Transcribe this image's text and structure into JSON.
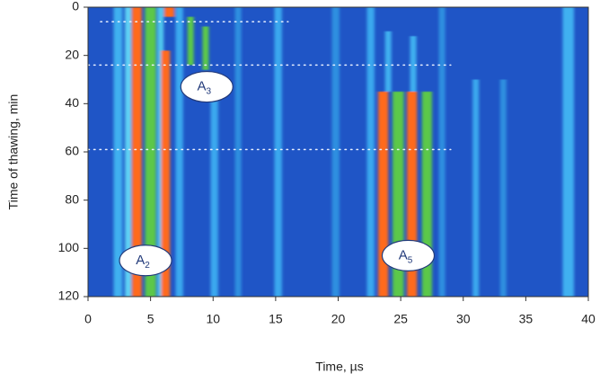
{
  "chart_data": {
    "type": "heatmap",
    "xlabel": "Time, µs",
    "ylabel": "Time of thawing, min",
    "xlim": [
      0,
      40
    ],
    "ylim": [
      120,
      0
    ],
    "xticks": [
      0,
      5,
      10,
      15,
      20,
      25,
      30,
      35,
      40
    ],
    "yticks": [
      0,
      20,
      40,
      60,
      80,
      100,
      120
    ],
    "background": "#1f55c6",
    "stripes": [
      {
        "x": 2.4,
        "width": 0.7,
        "y": [
          0,
          120
        ],
        "color": "#3fb0f0"
      },
      {
        "x": 3.2,
        "width": 0.5,
        "y": [
          0,
          120
        ],
        "color": "#5fd3f5"
      },
      {
        "x": 3.9,
        "width": 0.8,
        "y": [
          0,
          120
        ],
        "color": "#ff6a1a"
      },
      {
        "x": 5.0,
        "width": 0.9,
        "y": [
          0,
          120
        ],
        "color": "#5cc84a"
      },
      {
        "x": 5.8,
        "width": 0.5,
        "y": [
          0,
          120
        ],
        "color": "#4fc6ee"
      },
      {
        "x": 6.2,
        "width": 0.7,
        "y": [
          18,
          120
        ],
        "color": "#ff6a1a"
      },
      {
        "x": 6.5,
        "width": 0.8,
        "y": [
          0,
          4
        ],
        "color": "#ff6a1a"
      },
      {
        "x": 7.3,
        "width": 0.6,
        "y": [
          0,
          120
        ],
        "color": "#3aa8ee"
      },
      {
        "x": 8.2,
        "width": 0.5,
        "y": [
          4,
          24
        ],
        "color": "#5cc84a"
      },
      {
        "x": 9.4,
        "width": 0.5,
        "y": [
          8,
          26
        ],
        "color": "#5cc84a"
      },
      {
        "x": 10.1,
        "width": 0.6,
        "y": [
          30,
          120
        ],
        "color": "#3aa8ee"
      },
      {
        "x": 12.0,
        "width": 0.5,
        "y": [
          0,
          120
        ],
        "color": "#2f8fe0"
      },
      {
        "x": 15.2,
        "width": 0.6,
        "y": [
          0,
          120
        ],
        "color": "#3aa8ee"
      },
      {
        "x": 19.8,
        "width": 0.6,
        "y": [
          0,
          120
        ],
        "color": "#2f8fe0"
      },
      {
        "x": 22.6,
        "width": 0.6,
        "y": [
          0,
          120
        ],
        "color": "#3aa8ee"
      },
      {
        "x": 23.6,
        "width": 0.8,
        "y": [
          35,
          120
        ],
        "color": "#ff6a1a"
      },
      {
        "x": 24.8,
        "width": 0.9,
        "y": [
          35,
          120
        ],
        "color": "#5cc84a"
      },
      {
        "x": 25.9,
        "width": 0.8,
        "y": [
          35,
          120
        ],
        "color": "#ff6a1a"
      },
      {
        "x": 27.1,
        "width": 0.8,
        "y": [
          35,
          120
        ],
        "color": "#5cc84a"
      },
      {
        "x": 24.0,
        "width": 0.5,
        "y": [
          10,
          35
        ],
        "color": "#3fb0f0"
      },
      {
        "x": 26.0,
        "width": 0.5,
        "y": [
          12,
          35
        ],
        "color": "#3fb0f0"
      },
      {
        "x": 28.3,
        "width": 0.5,
        "y": [
          0,
          120
        ],
        "color": "#2f8fe0"
      },
      {
        "x": 31.0,
        "width": 0.5,
        "y": [
          30,
          120
        ],
        "color": "#3aa8ee"
      },
      {
        "x": 33.2,
        "width": 0.5,
        "y": [
          30,
          120
        ],
        "color": "#2f8fe0"
      },
      {
        "x": 38.4,
        "width": 0.9,
        "y": [
          0,
          120
        ],
        "color": "#3fb0f0"
      }
    ],
    "reference_lines": [
      {
        "y": 6,
        "x": [
          1,
          16
        ]
      },
      {
        "y": 24,
        "x": [
          0,
          29
        ]
      },
      {
        "y": 59,
        "x": [
          0,
          29
        ]
      }
    ],
    "annotations": [
      {
        "text": "A",
        "sub": "2",
        "x": 4.6,
        "y": 105
      },
      {
        "text": "A",
        "sub": "3",
        "x": 9.5,
        "y": 33
      },
      {
        "text": "A",
        "sub": "5",
        "x": 25.6,
        "y": 103
      }
    ]
  }
}
